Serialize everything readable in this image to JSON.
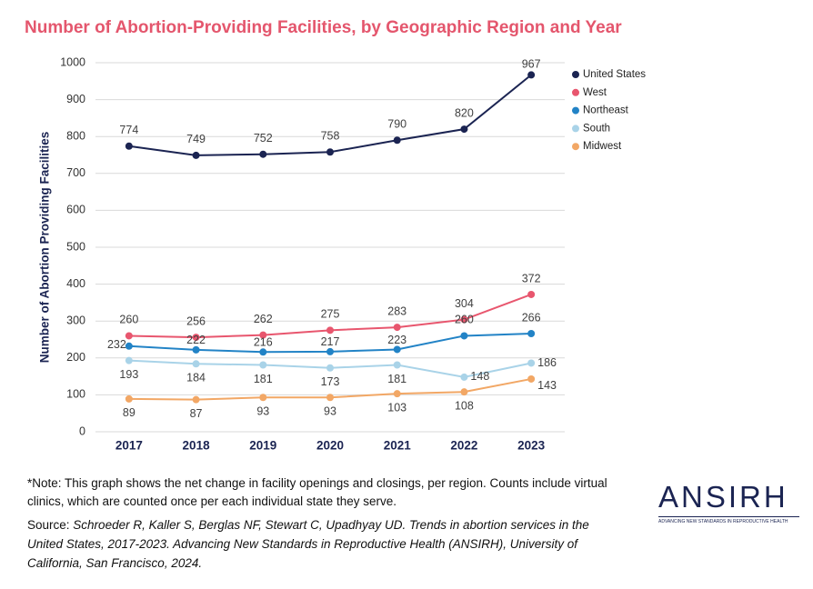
{
  "chart_data": {
    "type": "line",
    "title": "Number of Abortion-Providing Facilities, by Geographic Region and Year",
    "y_label": "Number of Abortion Providing Facilities",
    "categories": [
      "2017",
      "2018",
      "2019",
      "2020",
      "2021",
      "2022",
      "2023"
    ],
    "series": [
      {
        "name": "United States",
        "color": "#1b2452",
        "values": [
          774,
          749,
          752,
          758,
          790,
          820,
          967
        ]
      },
      {
        "name": "West",
        "color": "#e8566e",
        "values": [
          260,
          256,
          262,
          275,
          283,
          304,
          372
        ]
      },
      {
        "name": "Northeast",
        "color": "#2283c6",
        "values": [
          232,
          222,
          216,
          217,
          223,
          260,
          266
        ]
      },
      {
        "name": "South",
        "color": "#a9d3e8",
        "values": [
          193,
          184,
          181,
          173,
          181,
          148,
          186
        ]
      },
      {
        "name": "Midwest",
        "color": "#f2a765",
        "values": [
          89,
          87,
          93,
          93,
          103,
          108,
          143
        ]
      }
    ],
    "ylim": [
      0,
      1000
    ],
    "yticks": [
      0,
      100,
      200,
      300,
      400,
      500,
      600,
      700,
      800,
      900,
      1000
    ],
    "grid": true,
    "legend": "right"
  },
  "footer": {
    "note": "*Note: This graph shows the net change in facility openings and closings, per region. Counts include virtual clinics, which are counted once per each individual state they serve.",
    "source_label": "Source:",
    "source": "Schroeder R, Kaller S, Berglas NF, Stewart C, Upadhyay UD. Trends in abortion services in the United States, 2017-2023. Advancing New Standards in Reproductive Health (ANSIRH), University of California, San Francisco, 2024.",
    "logo": "ANSIRH",
    "logo_tagline": "ADVANCING NEW STANDARDS IN REPRODUCTIVE HEALTH"
  }
}
